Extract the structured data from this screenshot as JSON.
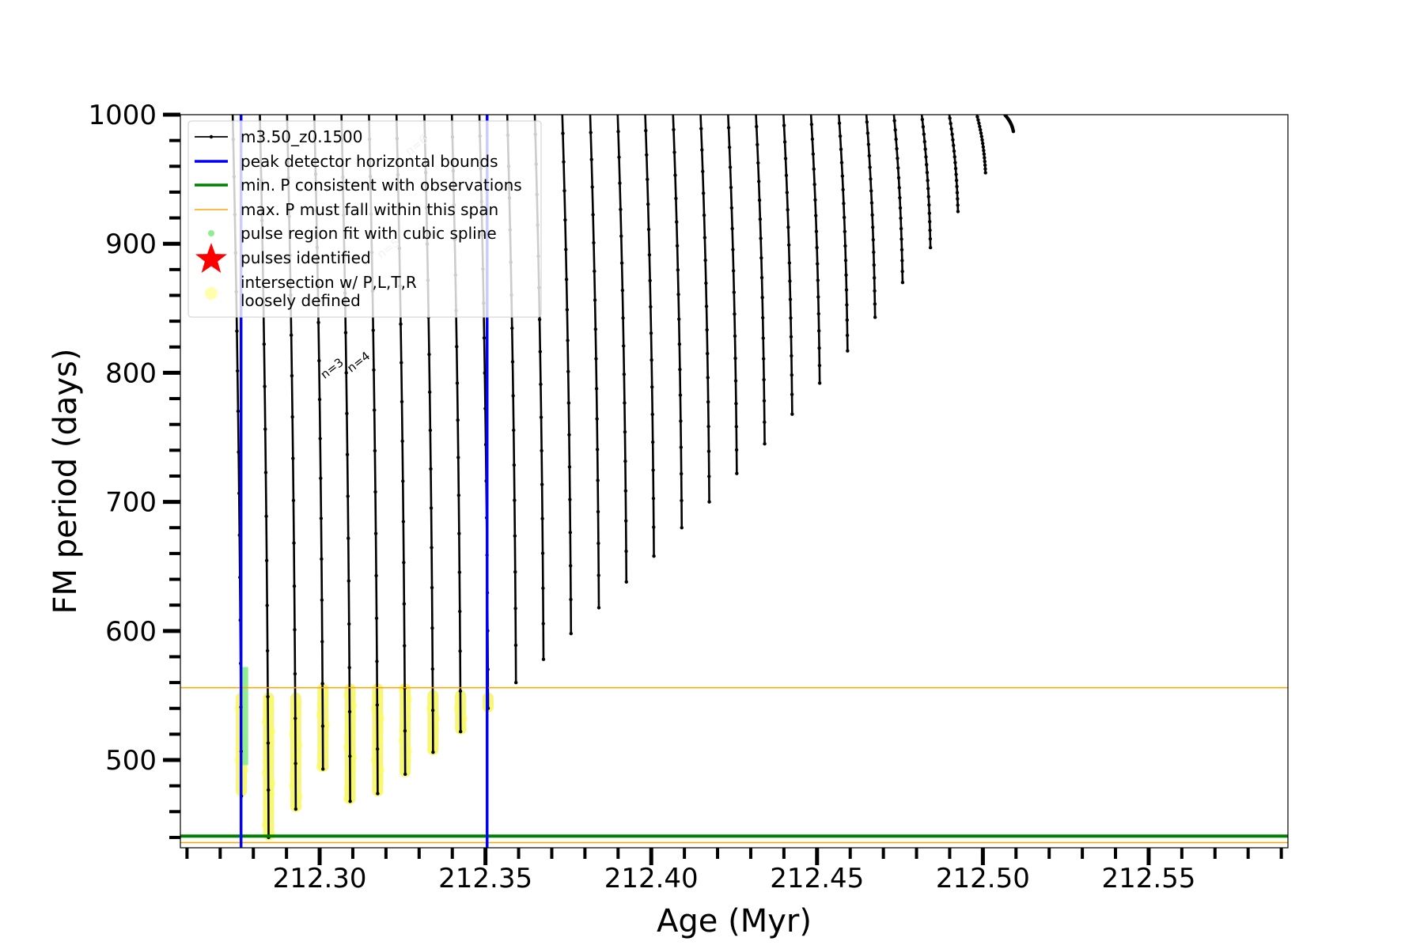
{
  "chart_data": {
    "type": "line",
    "title": "",
    "xlabel": "Age (Myr)",
    "ylabel": "FM period (days)",
    "xlim": [
      212.258,
      212.592
    ],
    "ylim": [
      432,
      1000
    ],
    "x_major_ticks": [
      212.3,
      212.35,
      212.4,
      212.45,
      212.5,
      212.55
    ],
    "x_tick_labels": [
      "212.30",
      "212.35",
      "212.40",
      "212.45",
      "212.50",
      "212.55"
    ],
    "y_major_ticks": [
      500,
      600,
      700,
      800,
      900,
      1000
    ],
    "y_tick_labels": [
      "500",
      "600",
      "700",
      "800",
      "900",
      "1000"
    ],
    "grid": false,
    "legend": {
      "placement": "top-left",
      "entries": [
        {
          "label": "m3.50_z0.1500",
          "kind": "line-marker",
          "color": "#000000"
        },
        {
          "label": "peak detector horizontal bounds",
          "kind": "line",
          "color": "#0000ff"
        },
        {
          "label": "min. P consistent with observations",
          "kind": "line",
          "color": "#008000"
        },
        {
          "label": "max. P must fall within this span",
          "kind": "line",
          "color": "#ffa500"
        },
        {
          "label": "pulse region fit with cubic spline",
          "kind": "dot",
          "color": "#90ee90"
        },
        {
          "label": "pulses identified",
          "kind": "star",
          "color": "#ff0000"
        },
        {
          "label": "intersection w/ P,L,T,R",
          "label2": "loosely defined",
          "kind": "circle",
          "color": "#ffff99"
        }
      ]
    },
    "reference_lines": {
      "vertical_blue": [
        212.2763,
        212.3505
      ],
      "horizontal_green": 441,
      "horizontal_orange": [
        436,
        556
      ]
    },
    "series": [
      {
        "name": "m3.50_z0.1500",
        "color": "#000000",
        "pulses": [
          {
            "x": 212.2764,
            "min": 472,
            "max": 1000
          },
          {
            "x": 212.2846,
            "min": 440,
            "max": 1000
          },
          {
            "x": 212.2928,
            "min": 462,
            "max": 1000
          },
          {
            "x": 212.301,
            "min": 493,
            "max": 1000
          },
          {
            "x": 212.3092,
            "min": 468,
            "max": 1000
          },
          {
            "x": 212.3175,
            "min": 474,
            "max": 1000
          },
          {
            "x": 212.3258,
            "min": 489,
            "max": 1000
          },
          {
            "x": 212.3342,
            "min": 506,
            "max": 1000
          },
          {
            "x": 212.3425,
            "min": 522,
            "max": 1000
          },
          {
            "x": 212.3508,
            "min": 540,
            "max": 1000
          },
          {
            "x": 212.3592,
            "min": 560,
            "max": 1000
          },
          {
            "x": 212.3675,
            "min": 578,
            "max": 1000
          },
          {
            "x": 212.3758,
            "min": 598,
            "max": 1000
          },
          {
            "x": 212.3842,
            "min": 618,
            "max": 1000
          },
          {
            "x": 212.3925,
            "min": 638,
            "max": 1000
          },
          {
            "x": 212.4008,
            "min": 658,
            "max": 1000
          },
          {
            "x": 212.4092,
            "min": 680,
            "max": 1000
          },
          {
            "x": 212.4175,
            "min": 700,
            "max": 1000
          },
          {
            "x": 212.4258,
            "min": 722,
            "max": 1000
          },
          {
            "x": 212.4342,
            "min": 745,
            "max": 1000
          },
          {
            "x": 212.4425,
            "min": 768,
            "max": 1000
          },
          {
            "x": 212.4508,
            "min": 792,
            "max": 1000
          },
          {
            "x": 212.4592,
            "min": 817,
            "max": 1000
          },
          {
            "x": 212.4675,
            "min": 843,
            "max": 1000
          },
          {
            "x": 212.4758,
            "min": 870,
            "max": 1000
          },
          {
            "x": 212.4842,
            "min": 897,
            "max": 1000
          },
          {
            "x": 212.4925,
            "min": 925,
            "max": 1000
          },
          {
            "x": 212.5008,
            "min": 955,
            "max": 1000
          },
          {
            "x": 212.5092,
            "min": 987,
            "max": 1000
          }
        ]
      }
    ],
    "spline_region": {
      "x": 212.2776,
      "min": 496,
      "max": 572
    },
    "intersections": [
      {
        "x": 212.2764,
        "min": 476,
        "max": 548
      },
      {
        "x": 212.2846,
        "min": 442,
        "max": 548
      },
      {
        "x": 212.2928,
        "min": 464,
        "max": 548
      },
      {
        "x": 212.301,
        "min": 495,
        "max": 555
      },
      {
        "x": 212.3092,
        "min": 470,
        "max": 555
      },
      {
        "x": 212.3175,
        "min": 476,
        "max": 555
      },
      {
        "x": 212.3258,
        "min": 491,
        "max": 555
      },
      {
        "x": 212.3342,
        "min": 508,
        "max": 550
      },
      {
        "x": 212.3425,
        "min": 524,
        "max": 550
      },
      {
        "x": 212.3508,
        "min": 541,
        "max": 548
      }
    ],
    "annotations": [
      {
        "text": "n=3",
        "x": 212.3015,
        "y": 795,
        "rotation": -38,
        "color": "#000000"
      },
      {
        "text": "n=4",
        "x": 212.3095,
        "y": 800,
        "rotation": -38,
        "color": "#000000"
      },
      {
        "text": "n=5",
        "x": 212.3185,
        "y": 888,
        "rotation": -38,
        "color": "#bbbbbb"
      },
      {
        "text": "n=6",
        "x": 212.327,
        "y": 968,
        "rotation": -38,
        "color": "#bbbbbb"
      }
    ]
  }
}
